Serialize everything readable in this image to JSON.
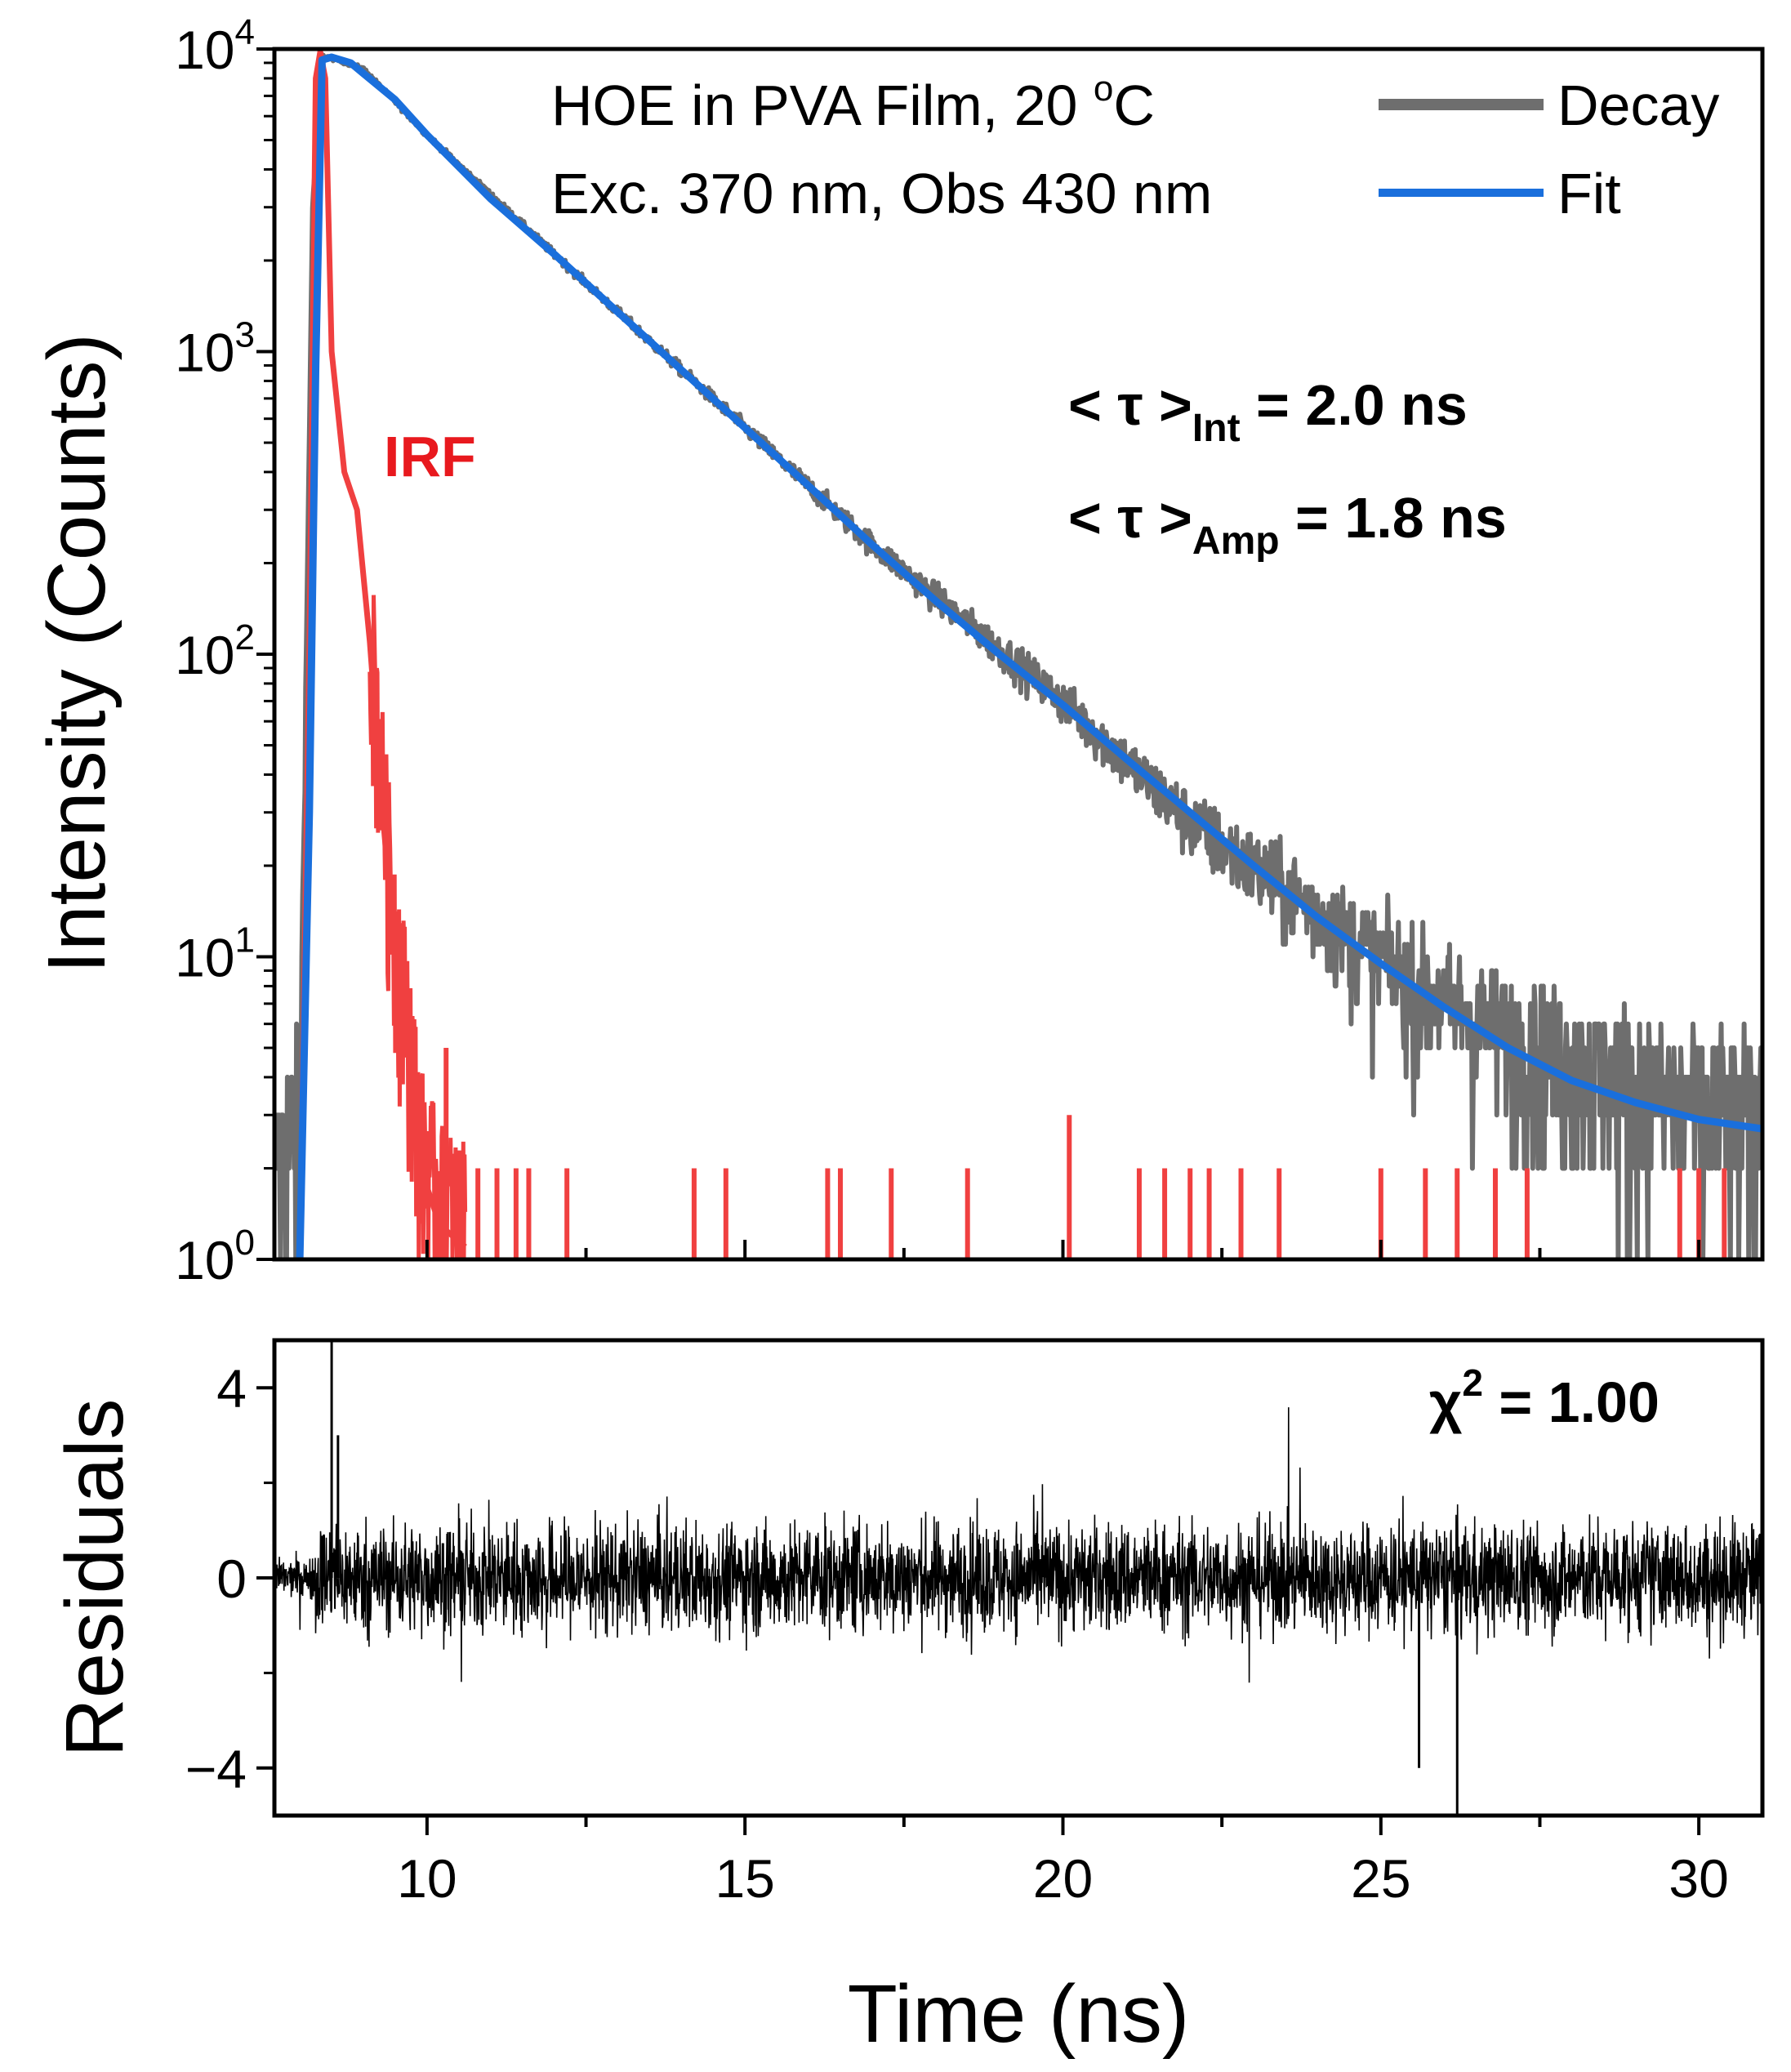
{
  "chart_data": {
    "type": "line",
    "panels": [
      {
        "id": "decay",
        "ylabel": "Intensity (Counts)",
        "yscale": "log",
        "ylim": [
          1,
          10000
        ],
        "xlim": [
          7.6,
          31
        ],
        "ytick_labels": [
          {
            "base": "10",
            "exp": "0",
            "value": 1
          },
          {
            "base": "10",
            "exp": "1",
            "value": 10
          },
          {
            "base": "10",
            "exp": "2",
            "value": 100
          },
          {
            "base": "10",
            "exp": "3",
            "value": 1000
          },
          {
            "base": "10",
            "exp": "4",
            "value": 10000
          }
        ],
        "legend_title_lines": [
          "HOE in PVA Film, 20 °C",
          "Exc. 370 nm, Obs 430 nm"
        ],
        "legend_title_parts": {
          "line1_before": "HOE in PVA Film, 20 ",
          "line1_sup": "o",
          "line1_after": "C",
          "line2": "Exc. 370 nm, Obs 430 nm"
        },
        "legend_position": "top-right",
        "series": [
          {
            "name": "Decay",
            "color": "#6e6e6e",
            "description_points": [
              [
                7.6,
                2
              ],
              [
                8.0,
                3
              ],
              [
                8.2,
                3000
              ],
              [
                8.35,
                9500
              ],
              [
                8.6,
                9200
              ],
              [
                9.0,
                8600
              ],
              [
                10,
                5200
              ],
              [
                12,
                2100
              ],
              [
                15,
                560
              ],
              [
                17,
                230
              ],
              [
                20,
                70
              ],
              [
                22,
                28
              ],
              [
                24,
                14
              ],
              [
                26,
                7
              ],
              [
                28,
                4.5
              ],
              [
                30,
                3.2
              ],
              [
                31,
                3
              ]
            ]
          },
          {
            "name": "Fit",
            "color": "#1a6fdc",
            "points": [
              [
                8.0,
                1
              ],
              [
                8.15,
                30
              ],
              [
                8.25,
                900
              ],
              [
                8.35,
                9200
              ],
              [
                8.5,
                9400
              ],
              [
                8.8,
                9000
              ],
              [
                9.0,
                8300
              ],
              [
                9.5,
                6800
              ],
              [
                10,
                5200
              ],
              [
                11,
                3200
              ],
              [
                12,
                2100
              ],
              [
                13,
                1350
              ],
              [
                14,
                870
              ],
              [
                15,
                560
              ],
              [
                16,
                360
              ],
              [
                17,
                230
              ],
              [
                18,
                150
              ],
              [
                19,
                100
              ],
              [
                20,
                68
              ],
              [
                21,
                45
              ],
              [
                22,
                30
              ],
              [
                23,
                20
              ],
              [
                24,
                13.5
              ],
              [
                25,
                9.5
              ],
              [
                26,
                6.8
              ],
              [
                27,
                5
              ],
              [
                28,
                3.9
              ],
              [
                29,
                3.3
              ],
              [
                30,
                2.9
              ],
              [
                31,
                2.7
              ]
            ]
          },
          {
            "name": "IRF",
            "color": "#f04040",
            "label": "IRF",
            "points": [
              [
                8.0,
                1
              ],
              [
                8.15,
                100
              ],
              [
                8.25,
                8000
              ],
              [
                8.32,
                9800
              ],
              [
                8.4,
                8000
              ],
              [
                8.5,
                1000
              ],
              [
                8.7,
                400
              ],
              [
                8.9,
                300
              ],
              [
                9.1,
                110
              ],
              [
                9.3,
                30
              ],
              [
                9.5,
                10
              ],
              [
                9.7,
                5
              ],
              [
                9.9,
                2
              ],
              [
                10.2,
                1.3
              ],
              [
                10.6,
                1.1
              ]
            ],
            "sparse_x": [
              10.8,
              11.1,
              11.4,
              11.6,
              12.2,
              14.2,
              14.7,
              16.3,
              16.5,
              17.3,
              18.5,
              20.1,
              21.2,
              21.6,
              22.0,
              22.3,
              22.8,
              23.4,
              25.0,
              25.7,
              26.2,
              26.8,
              27.3,
              29.7,
              30.0,
              30.4
            ]
          }
        ],
        "annotations": [
          {
            "text": "< τ >",
            "sub": "Int",
            "after": " = 2.0 ns"
          },
          {
            "text": "< τ >",
            "sub": "Amp",
            "after": " = 1.8 ns"
          }
        ]
      },
      {
        "id": "residuals",
        "ylabel": "Residuals",
        "ylim": [
          -5,
          5
        ],
        "xlim": [
          7.6,
          31
        ],
        "yticks": [
          4,
          0,
          -4
        ],
        "ytick_labels": [
          "4",
          "0",
          "−4"
        ],
        "annotation": {
          "text": "χ",
          "sup": "2",
          "after": " = 1.00"
        },
        "series": [
          {
            "name": "Residuals",
            "color": "#000000",
            "noise_amplitude": 1.5,
            "spikes": [
              [
                8.5,
                5
              ],
              [
                8.6,
                3
              ],
              [
                26.2,
                -5
              ],
              [
                25.6,
                -4
              ]
            ]
          }
        ]
      }
    ],
    "xlabel": "Time (ns)",
    "xticks": [
      10,
      15,
      20,
      25,
      30
    ],
    "xtick_labels": [
      "10",
      "15",
      "20",
      "25",
      "30"
    ],
    "grid": false
  }
}
